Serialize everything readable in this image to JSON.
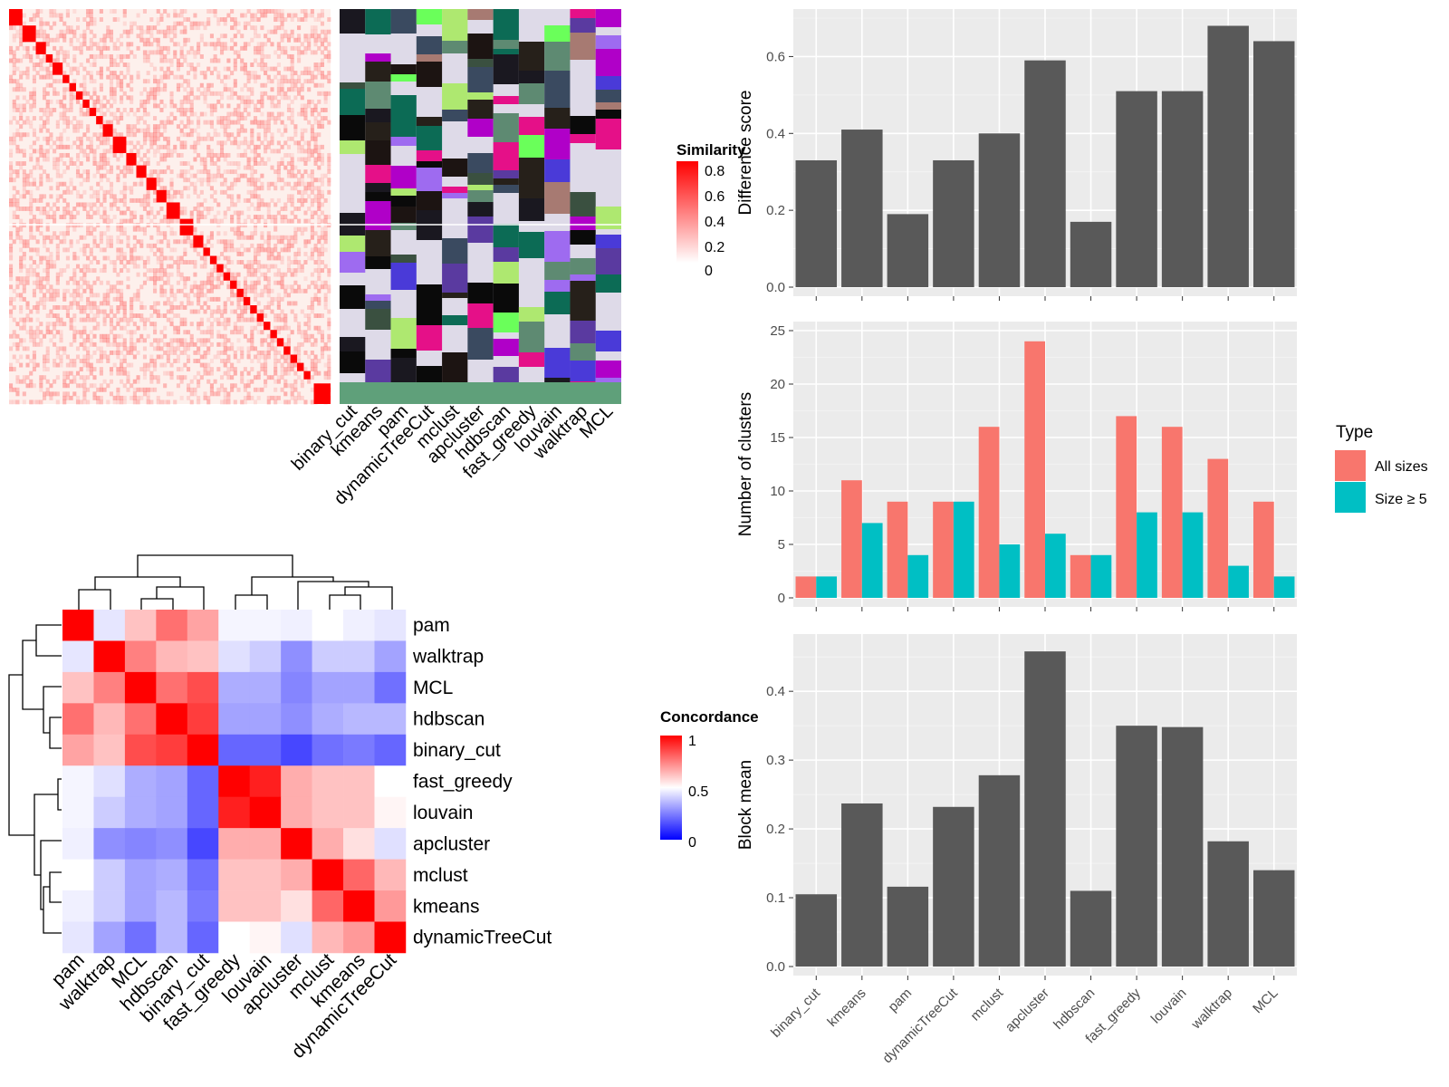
{
  "methods_order": [
    "binary_cut",
    "kmeans",
    "pam",
    "dynamicTreeCut",
    "mclust",
    "apcluster",
    "hdbscan",
    "fast_greedy",
    "louvain",
    "walktrap",
    "MCL"
  ],
  "similarity_legend": {
    "title": "Similarity",
    "ticks": [
      "0.8",
      "0.6",
      "0.4",
      "0.2",
      "0"
    ],
    "colors": {
      "low": "#ffffff",
      "high": "#ff0000"
    }
  },
  "concordance_legend": {
    "title": "Concordance",
    "ticks": [
      "1",
      "0.5",
      "0"
    ],
    "colors": {
      "low": "#0000ff",
      "mid": "#ffffff",
      "high": "#ff0000"
    }
  },
  "concordance": {
    "order": [
      "pam",
      "walktrap",
      "MCL",
      "hdbscan",
      "binary_cut",
      "fast_greedy",
      "louvain",
      "apcluster",
      "mclust",
      "kmeans",
      "dynamicTreeCut"
    ],
    "matrix": [
      [
        1.0,
        0.45,
        0.62,
        0.78,
        0.68,
        0.48,
        0.48,
        0.47,
        0.5,
        0.47,
        0.45
      ],
      [
        0.45,
        1.0,
        0.75,
        0.64,
        0.62,
        0.44,
        0.4,
        0.28,
        0.4,
        0.4,
        0.32
      ],
      [
        0.62,
        0.75,
        1.0,
        0.78,
        0.85,
        0.34,
        0.34,
        0.26,
        0.32,
        0.32,
        0.22
      ],
      [
        0.78,
        0.64,
        0.78,
        1.0,
        0.88,
        0.32,
        0.32,
        0.28,
        0.34,
        0.36,
        0.36
      ],
      [
        0.68,
        0.62,
        0.85,
        0.88,
        1.0,
        0.2,
        0.2,
        0.14,
        0.22,
        0.24,
        0.2
      ],
      [
        0.48,
        0.44,
        0.34,
        0.32,
        0.2,
        1.0,
        0.94,
        0.66,
        0.62,
        0.62,
        0.5
      ],
      [
        0.48,
        0.4,
        0.34,
        0.32,
        0.2,
        0.94,
        1.0,
        0.66,
        0.62,
        0.62,
        0.52
      ],
      [
        0.47,
        0.28,
        0.26,
        0.28,
        0.14,
        0.66,
        0.66,
        1.0,
        0.66,
        0.56,
        0.44
      ],
      [
        0.5,
        0.4,
        0.32,
        0.34,
        0.22,
        0.62,
        0.62,
        0.66,
        1.0,
        0.8,
        0.64
      ],
      [
        0.47,
        0.4,
        0.32,
        0.36,
        0.24,
        0.62,
        0.62,
        0.56,
        0.8,
        1.0,
        0.7
      ],
      [
        0.45,
        0.32,
        0.22,
        0.36,
        0.2,
        0.5,
        0.52,
        0.44,
        0.64,
        0.7,
        1.0
      ]
    ]
  },
  "chart_data": [
    {
      "type": "bar",
      "categories": [
        "binary_cut",
        "kmeans",
        "pam",
        "dynamicTreeCut",
        "mclust",
        "apcluster",
        "hdbscan",
        "fast_greedy",
        "louvain",
        "walktrap",
        "MCL"
      ],
      "values": [
        0.33,
        0.41,
        0.19,
        0.33,
        0.4,
        0.59,
        0.17,
        0.51,
        0.51,
        0.68,
        0.64
      ],
      "ylabel": "Difference score",
      "ylim": [
        0,
        0.7
      ],
      "yticks": [
        "0.0",
        "0.2",
        "0.4",
        "0.6"
      ],
      "color": "#595959"
    },
    {
      "type": "bar",
      "categories": [
        "binary_cut",
        "kmeans",
        "pam",
        "dynamicTreeCut",
        "mclust",
        "apcluster",
        "hdbscan",
        "fast_greedy",
        "louvain",
        "walktrap",
        "MCL"
      ],
      "series": [
        {
          "name": "All sizes",
          "values": [
            2,
            11,
            9,
            9,
            16,
            24,
            4,
            17,
            16,
            13,
            9
          ],
          "color": "#F8766D"
        },
        {
          "name": "Size ≥ 5",
          "values": [
            2,
            7,
            4,
            9,
            5,
            6,
            4,
            8,
            8,
            3,
            2
          ],
          "color": "#00BFC4"
        }
      ],
      "ylabel": "Number of clusters",
      "ylim": [
        0,
        25
      ],
      "yticks": [
        "0",
        "5",
        "10",
        "15",
        "20",
        "25"
      ],
      "legend_title": "Type",
      "legend_position": "right"
    },
    {
      "type": "bar",
      "categories": [
        "binary_cut",
        "kmeans",
        "pam",
        "dynamicTreeCut",
        "mclust",
        "apcluster",
        "hdbscan",
        "fast_greedy",
        "louvain",
        "walktrap",
        "MCL"
      ],
      "values": [
        0.105,
        0.237,
        0.116,
        0.232,
        0.278,
        0.458,
        0.11,
        0.35,
        0.348,
        0.182,
        0.14
      ],
      "ylabel": "Block mean",
      "ylim": [
        0,
        0.47
      ],
      "yticks": [
        "0.0",
        "0.1",
        "0.2",
        "0.3",
        "0.4"
      ],
      "color": "#595959"
    }
  ]
}
